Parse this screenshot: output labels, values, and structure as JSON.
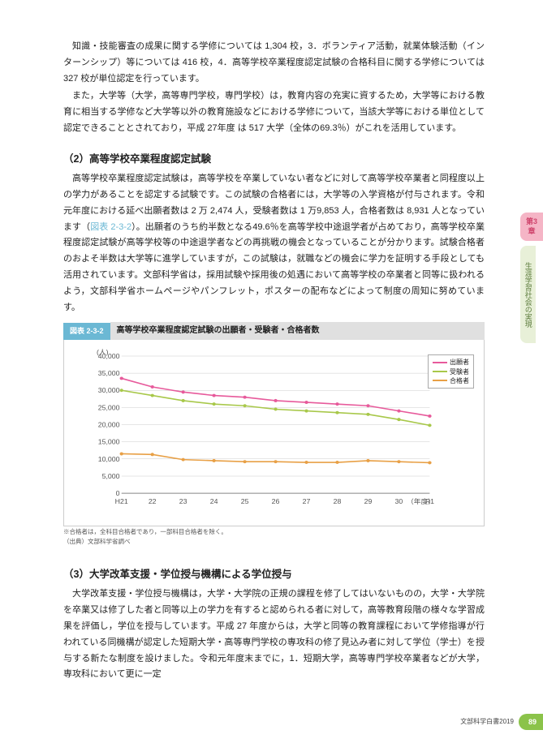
{
  "paragraphs": {
    "p1": "知識・技能審査の成果に関する学修については 1,304 校，3．ボランティア活動，就業体験活動（インターンシップ）等については 416 校，4．高等学校卒業程度認定試験の合格科目に関する学修については 327 校が単位認定を行っています。",
    "p2": "また，大学等（大学，高等専門学校，専門学校）は，教育内容の充実に資するため，大学等における教育に相当する学修など大学等以外の教育施設などにおける学修について，当該大学等における単位として認定できることとされており，平成 27年度 は 517 大学（全体の69.3％）がこれを活用しています。",
    "sec2_title": "（2）高等学校卒業程度認定試験",
    "sec2_body_a": "高等学校卒業程度認定試験は，高等学校を卒業していない者などに対して高等学校卒業者と同程度以上の学力があることを認定する試験です。この試験の合格者には，大学等の入学資格が付与されます。令和元年度における延べ出願者数は 2 万 2,474 人，受験者数は 1 万9,853 人，合格者数は 8,931 人となっています（",
    "figref": "図表 2-3-2",
    "sec2_body_b": "）。出願者のうち約半数となる49.6％を高等学校中途退学者が占めており，高等学校卒業程度認定試験が高等学校等の中途退学者などの再挑戦の機会となっていることが分かります。試験合格者のおよそ半数は大学等に進学していますが，この試験は，就職などの機会に学力を証明する手段としても活用されています。文部科学省は，採用試験や採用後の処遇において高等学校の卒業者と同等に扱われるよう，文部科学省ホームページやパンフレット，ポスターの配布などによって制度の周知に努めています。",
    "sec3_title": "（3）大学改革支援・学位授与機構による学位授与",
    "sec3_body": "大学改革支援・学位授与機構は，大学・大学院の正規の課程を修了してはいないものの，大学・大学院を卒業又は修了した者と同等以上の学力を有すると認められる者に対して，高等教育段階の様々な学習成果を評価し，学位を授与しています。平成 27 年度からは，大学と同等の教育課程において学修指導が行われている同機構が認定した短期大学・高等専門学校の専攻科の修了見込み者に対して学位（学士）を授与する新たな制度を設けました。令和元年度末までに，1．短期大学，高等専門学校卒業者などが大学，専攻科において更に一定"
  },
  "chart": {
    "tag": "図表 2-3-2",
    "title": "高等学校卒業程度認定試験の出願者・受験者・合格者数",
    "unit_label": "(人)",
    "ymax": 40000,
    "ytick_step": 5000,
    "yticks": [
      0,
      5000,
      10000,
      15000,
      20000,
      25000,
      30000,
      35000,
      40000
    ],
    "x_labels": [
      "H21",
      "22",
      "23",
      "24",
      "25",
      "26",
      "27",
      "28",
      "29",
      "30",
      "R1"
    ],
    "x_axis_suffix": "（年度）",
    "series": [
      {
        "name": "出願者",
        "color": "#e75a9b",
        "values": [
          33500,
          31000,
          29500,
          28500,
          28000,
          27000,
          26500,
          26000,
          25500,
          24000,
          22500
        ]
      },
      {
        "name": "受験者",
        "color": "#a8c84a",
        "values": [
          30000,
          28500,
          27000,
          26000,
          25500,
          24500,
          24000,
          23500,
          23000,
          21500,
          19800
        ]
      },
      {
        "name": "合格者",
        "color": "#e8a046",
        "values": [
          11500,
          11300,
          9800,
          9500,
          9200,
          9200,
          9000,
          9000,
          9500,
          9200,
          8900
        ]
      }
    ],
    "legend_labels": {
      "l0": "出願者",
      "l1": "受験者",
      "l2": "合格者"
    },
    "note1": "※合格者は，全科目合格者であり，一部科目合格者を除く。",
    "note2": "（出典）文部科学省調べ"
  },
  "sidebar": {
    "chapter_label": "第3章",
    "section_label": "生涯学習社会の実現"
  },
  "footer": {
    "doc_label": "文部科学白書2019",
    "page_num": "89"
  }
}
